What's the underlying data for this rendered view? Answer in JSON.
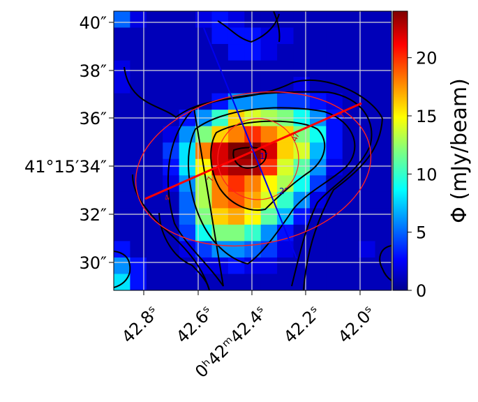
{
  "chart_data": {
    "type": "heatmap",
    "title": "",
    "xlabel": "",
    "ylabel": "",
    "colorbar": {
      "label": "Φ (mJy/beam)",
      "range": [
        0,
        24
      ],
      "ticks": [
        0,
        5,
        10,
        15,
        20
      ],
      "tick_labels": [
        "0",
        "5",
        "10",
        "15",
        "20"
      ],
      "colormap": "jet"
    },
    "x_ticks": [
      "42.8ˢ",
      "42.6ˢ",
      "0ʰ42ᵐ42.4ˢ",
      "42.2ˢ",
      "42.0ˢ"
    ],
    "y_ticks": [
      "40″",
      "38″",
      "36″",
      "41°15′34″",
      "32″",
      "30″"
    ],
    "grid": true,
    "grid_rows": 17,
    "grid_cols": 17,
    "values": [
      [
        5,
        2,
        1,
        1,
        1,
        2,
        3,
        2,
        1,
        1,
        1,
        1,
        1,
        1,
        1,
        1,
        1
      ],
      [
        1,
        1,
        1,
        1,
        1,
        1,
        3,
        3,
        3,
        2,
        2,
        1,
        1,
        1,
        1,
        1,
        1
      ],
      [
        1,
        1,
        1,
        1,
        1,
        1,
        1,
        3,
        3,
        2,
        1,
        1,
        1,
        1,
        1,
        1,
        1
      ],
      [
        2,
        1,
        1,
        1,
        1,
        1,
        1,
        1,
        1,
        1,
        1,
        1,
        1,
        1,
        1,
        1,
        1
      ],
      [
        2,
        1,
        1,
        1,
        1,
        1,
        1,
        1,
        1,
        1,
        1,
        2,
        1,
        1,
        1,
        1,
        1
      ],
      [
        1,
        1,
        1,
        1,
        1,
        1,
        3,
        6,
        6,
        6,
        4,
        4,
        3,
        2,
        1,
        1,
        1
      ],
      [
        1,
        1,
        1,
        1,
        3,
        6,
        10,
        16,
        14,
        13,
        12,
        9,
        6,
        3,
        1,
        1,
        1
      ],
      [
        1,
        1,
        1,
        2,
        6,
        12,
        16,
        18,
        20,
        18,
        16,
        12,
        9,
        3,
        1,
        1,
        1
      ],
      [
        1,
        1,
        1,
        4,
        8,
        18,
        22,
        24,
        24,
        22,
        16,
        14,
        7,
        3,
        1,
        1,
        1
      ],
      [
        1,
        1,
        1,
        3,
        8,
        15,
        22,
        23,
        23,
        20,
        14,
        11,
        6,
        2,
        1,
        1,
        1
      ],
      [
        1,
        1,
        1,
        2,
        6,
        13,
        18,
        20,
        18,
        15,
        13,
        9,
        4,
        1,
        1,
        1,
        1
      ],
      [
        1,
        1,
        1,
        1,
        5,
        13,
        18,
        19,
        17,
        14,
        10,
        6,
        2,
        1,
        1,
        1,
        1
      ],
      [
        1,
        1,
        1,
        1,
        5,
        12,
        16,
        17,
        15,
        11,
        7,
        3,
        1,
        1,
        1,
        1,
        1
      ],
      [
        1,
        1,
        1,
        1,
        4,
        9,
        12,
        12,
        10,
        6,
        3,
        1,
        1,
        1,
        1,
        1,
        1
      ],
      [
        3,
        1,
        1,
        1,
        2,
        4,
        6,
        6,
        5,
        4,
        2,
        1,
        1,
        1,
        1,
        2,
        1
      ],
      [
        6,
        3,
        1,
        1,
        1,
        2,
        2,
        3,
        2,
        2,
        1,
        1,
        1,
        1,
        1,
        1,
        1
      ],
      [
        8,
        3,
        1,
        1,
        1,
        1,
        1,
        1,
        1,
        1,
        1,
        1,
        1,
        1,
        1,
        1,
        1
      ]
    ],
    "annotations": {
      "contour_labels": [
        "4",
        "7",
        "7",
        "1",
        "4",
        "7"
      ],
      "ellipse_label": "4",
      "axis_labels": [
        "1″",
        "2″"
      ]
    }
  }
}
